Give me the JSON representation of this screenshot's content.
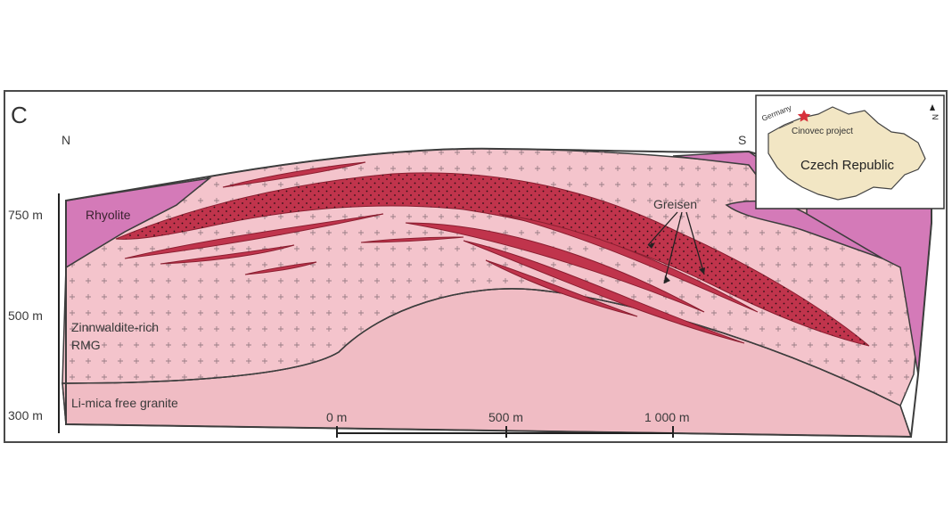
{
  "panel_letter": "C",
  "orientation": {
    "north": "N",
    "south": "S"
  },
  "elevation_labels": [
    "750 m",
    "500 m",
    "300 m"
  ],
  "units": {
    "rhyolite": "Rhyolite",
    "rmg_line1": "Zinnwaldite-rich",
    "rmg_line2": "RMG",
    "granite": "Li-mica free granite",
    "greisen": "Greisen"
  },
  "scale_bar": [
    "0 m",
    "500 m",
    "1 000 m"
  ],
  "inset": {
    "country": "Czech Republic",
    "neighbor": "Germany",
    "project": "Cinovec project",
    "north": "N"
  },
  "colors": {
    "rhyolite": "#d47ab8",
    "rmg": "#f4c4cc",
    "granite": "#f0bcc4",
    "greisen": "#c0344c",
    "inset_land": "#f2e6c4"
  }
}
